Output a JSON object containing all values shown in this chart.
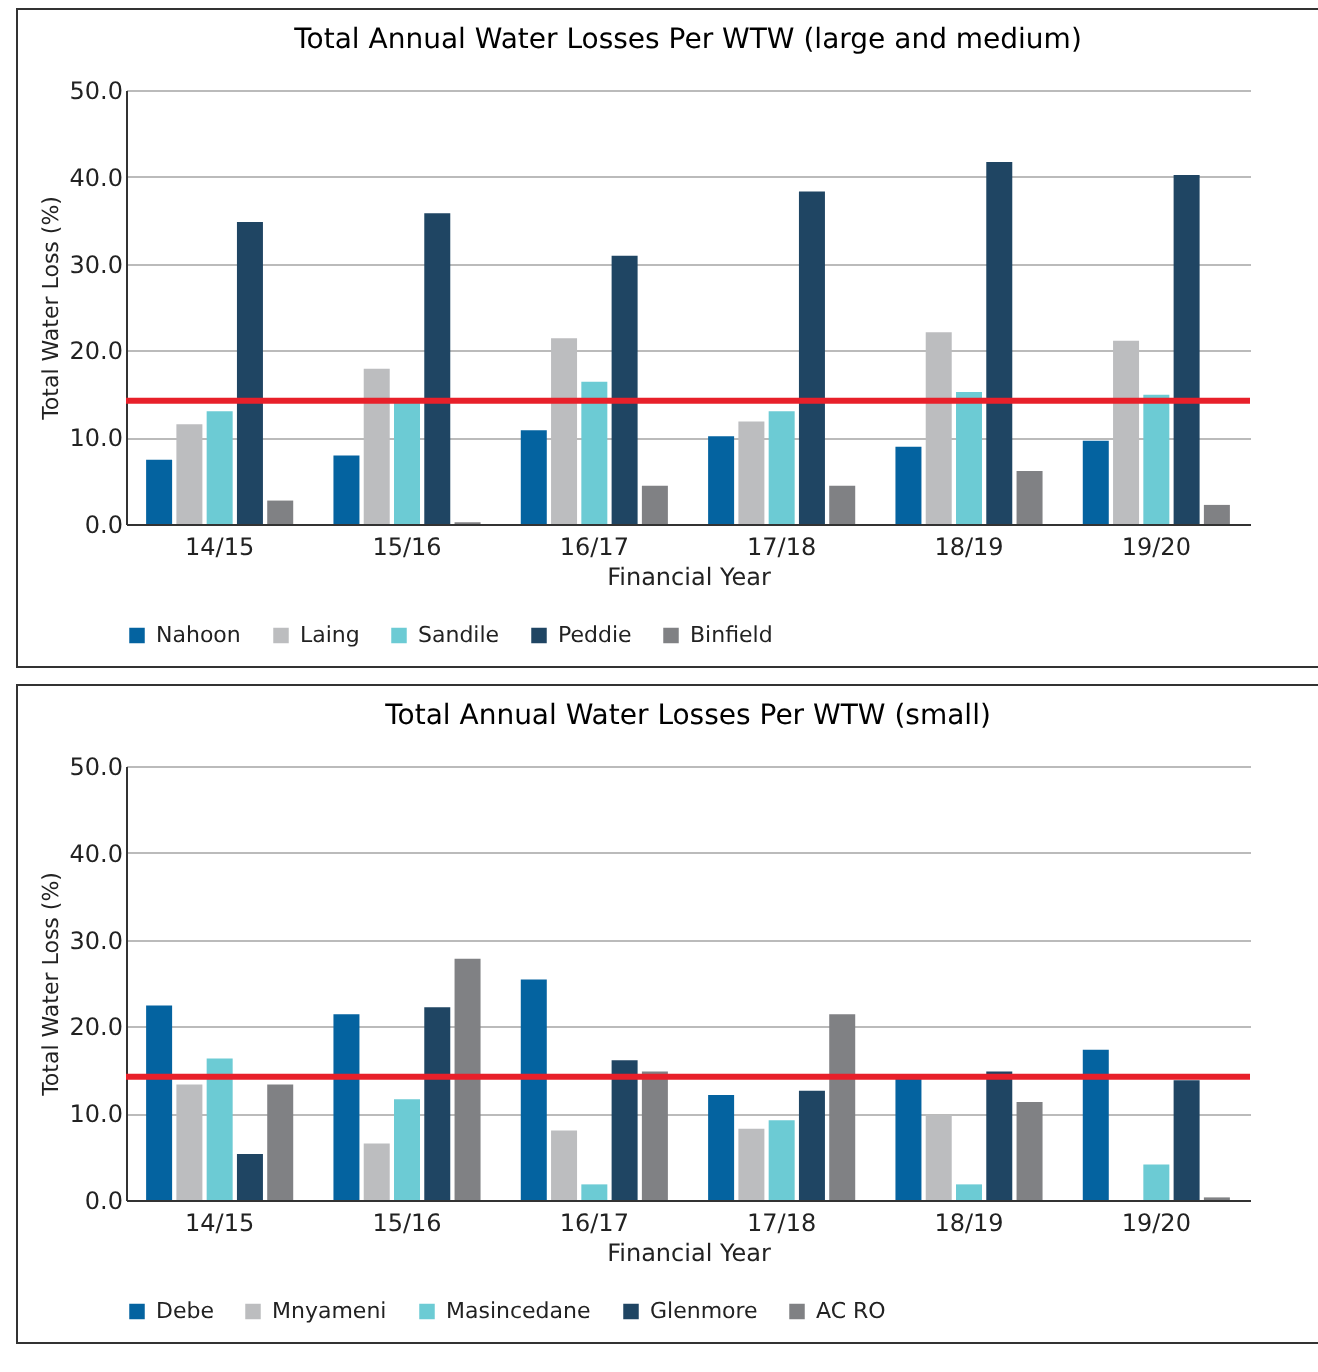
{
  "chart_data": [
    {
      "type": "bar",
      "title": "Total Annual Water Losses Per WTW (large and medium)",
      "xlabel": "Financial Year",
      "ylabel": "Total Water Loss (%)",
      "categories": [
        "14/15",
        "15/16",
        "16/17",
        "17/18",
        "18/19",
        "19/20"
      ],
      "series": [
        {
          "name": "Nahoon",
          "color": "#0463a0",
          "values": [
            7.4,
            7.9,
            10.8,
            10.1,
            8.9,
            9.6
          ]
        },
        {
          "name": "Laing",
          "color": "#bcbdbf",
          "values": [
            11.5,
            17.9,
            21.4,
            11.8,
            22.1,
            21.1
          ]
        },
        {
          "name": "Sandile",
          "color": "#6ccbd4",
          "values": [
            13.0,
            14.0,
            16.4,
            13.0,
            15.2,
            14.9
          ]
        },
        {
          "name": "Peddie",
          "color": "#1f4563",
          "values": [
            34.8,
            35.8,
            30.9,
            38.3,
            41.7,
            40.2
          ]
        },
        {
          "name": "Binfield",
          "color": "#808184",
          "values": [
            2.7,
            0.2,
            4.4,
            4.4,
            6.1,
            2.2
          ]
        }
      ],
      "ylim": [
        0,
        50
      ],
      "yticks": [
        {
          "value": 0,
          "label": "0.0"
        },
        {
          "value": 10,
          "label": "10.0"
        },
        {
          "value": 20,
          "label": "20.0"
        },
        {
          "value": 30,
          "label": "30.0"
        },
        {
          "value": 40,
          "label": "40.0"
        },
        {
          "value": 50,
          "label": "50.0"
        }
      ],
      "grid": "y",
      "legend": "bottom",
      "ref_lines": [
        {
          "axis": "y",
          "value": 14.2,
          "color": "#e8202a"
        }
      ]
    },
    {
      "type": "bar",
      "title": "Total Annual Water Losses Per WTW (small)",
      "xlabel": "Financial Year",
      "ylabel": "Total Water Loss (%)",
      "categories": [
        "14/15",
        "15/16",
        "16/17",
        "17/18",
        "18/19",
        "19/20"
      ],
      "series": [
        {
          "name": "Debe",
          "color": "#0463a0",
          "values": [
            22.4,
            21.4,
            25.4,
            12.1,
            14.1,
            17.3
          ]
        },
        {
          "name": "Mnyameni",
          "color": "#bcbdbf",
          "values": [
            13.3,
            6.5,
            8.0,
            8.2,
            9.8,
            null
          ]
        },
        {
          "name": "Masincedane",
          "color": "#6ccbd4",
          "values": [
            16.3,
            11.6,
            1.8,
            9.2,
            1.8,
            4.1
          ]
        },
        {
          "name": "Glenmore",
          "color": "#1f4563",
          "values": [
            5.3,
            22.2,
            16.1,
            12.6,
            14.8,
            13.8
          ]
        },
        {
          "name": "AC RO",
          "color": "#808184",
          "values": [
            13.3,
            27.8,
            14.8,
            21.4,
            11.3,
            0.3
          ]
        }
      ],
      "ylim": [
        0,
        50
      ],
      "yticks": [
        {
          "value": 0,
          "label": "0.0"
        },
        {
          "value": 10,
          "label": "10.0"
        },
        {
          "value": 20,
          "label": "20.0"
        },
        {
          "value": 30,
          "label": "30.0"
        },
        {
          "value": 40,
          "label": "40.0"
        },
        {
          "value": 50,
          "label": "50.0"
        }
      ],
      "grid": "y",
      "legend": "bottom",
      "ref_lines": [
        {
          "axis": "y",
          "value": 14.2,
          "color": "#e8202a"
        }
      ]
    }
  ]
}
